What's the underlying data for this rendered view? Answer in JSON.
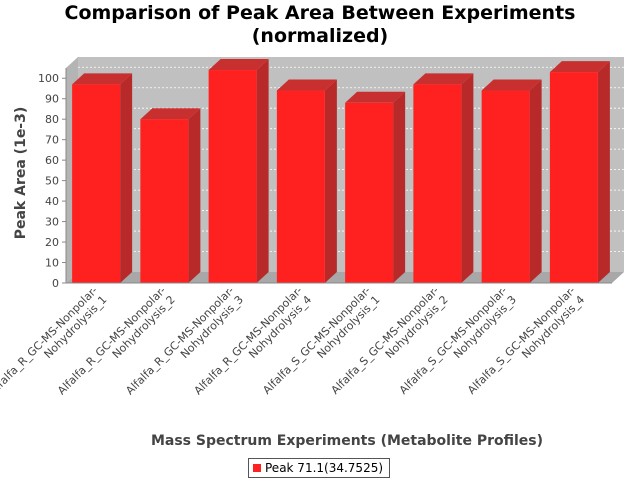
{
  "chart_data": {
    "type": "bar",
    "title_line1": "Comparison of Peak Area Between Experiments",
    "title_line2": "(normalized)",
    "xlabel": "Mass Spectrum Experiments (Metabolite Profiles)",
    "ylabel": "Peak Area (1e-3)",
    "ylim": [
      0,
      105
    ],
    "yticks": [
      0,
      10,
      20,
      30,
      40,
      50,
      60,
      70,
      80,
      90,
      100
    ],
    "grid": true,
    "legend_position": "bottom",
    "categories": [
      [
        "Alfalfa_R_GC-MS-Nonpolar-",
        "Nohydrolysis_1"
      ],
      [
        "Alfalfa_R_GC-MS-Nonpolar-",
        "Nohydrolysis_2"
      ],
      [
        "Alfalfa_R_GC-MS-Nonpolar-",
        "Nohydrolysis_3"
      ],
      [
        "Alfalfa_R_GC-MS-Nonpolar-",
        "Nohydrolysis_4"
      ],
      [
        "Alfalfa_S_GC-MS-Nonpolar-",
        "Nohydrolysis_1"
      ],
      [
        "Alfalfa_S_GC-MS-Nonpolar-",
        "Nohydrolysis_2"
      ],
      [
        "Alfalfa_S_GC-MS-Nonpolar-",
        "Nohydrolysis_3"
      ],
      [
        "Alfalfa_S_GC-MS-Nonpolar-",
        "Nohydrolysis_4"
      ]
    ],
    "series": [
      {
        "name": "Peak 71.1(34.7525)",
        "color": "#ff2020",
        "values": [
          97,
          80,
          104,
          94,
          88,
          97,
          94,
          103
        ]
      }
    ]
  }
}
